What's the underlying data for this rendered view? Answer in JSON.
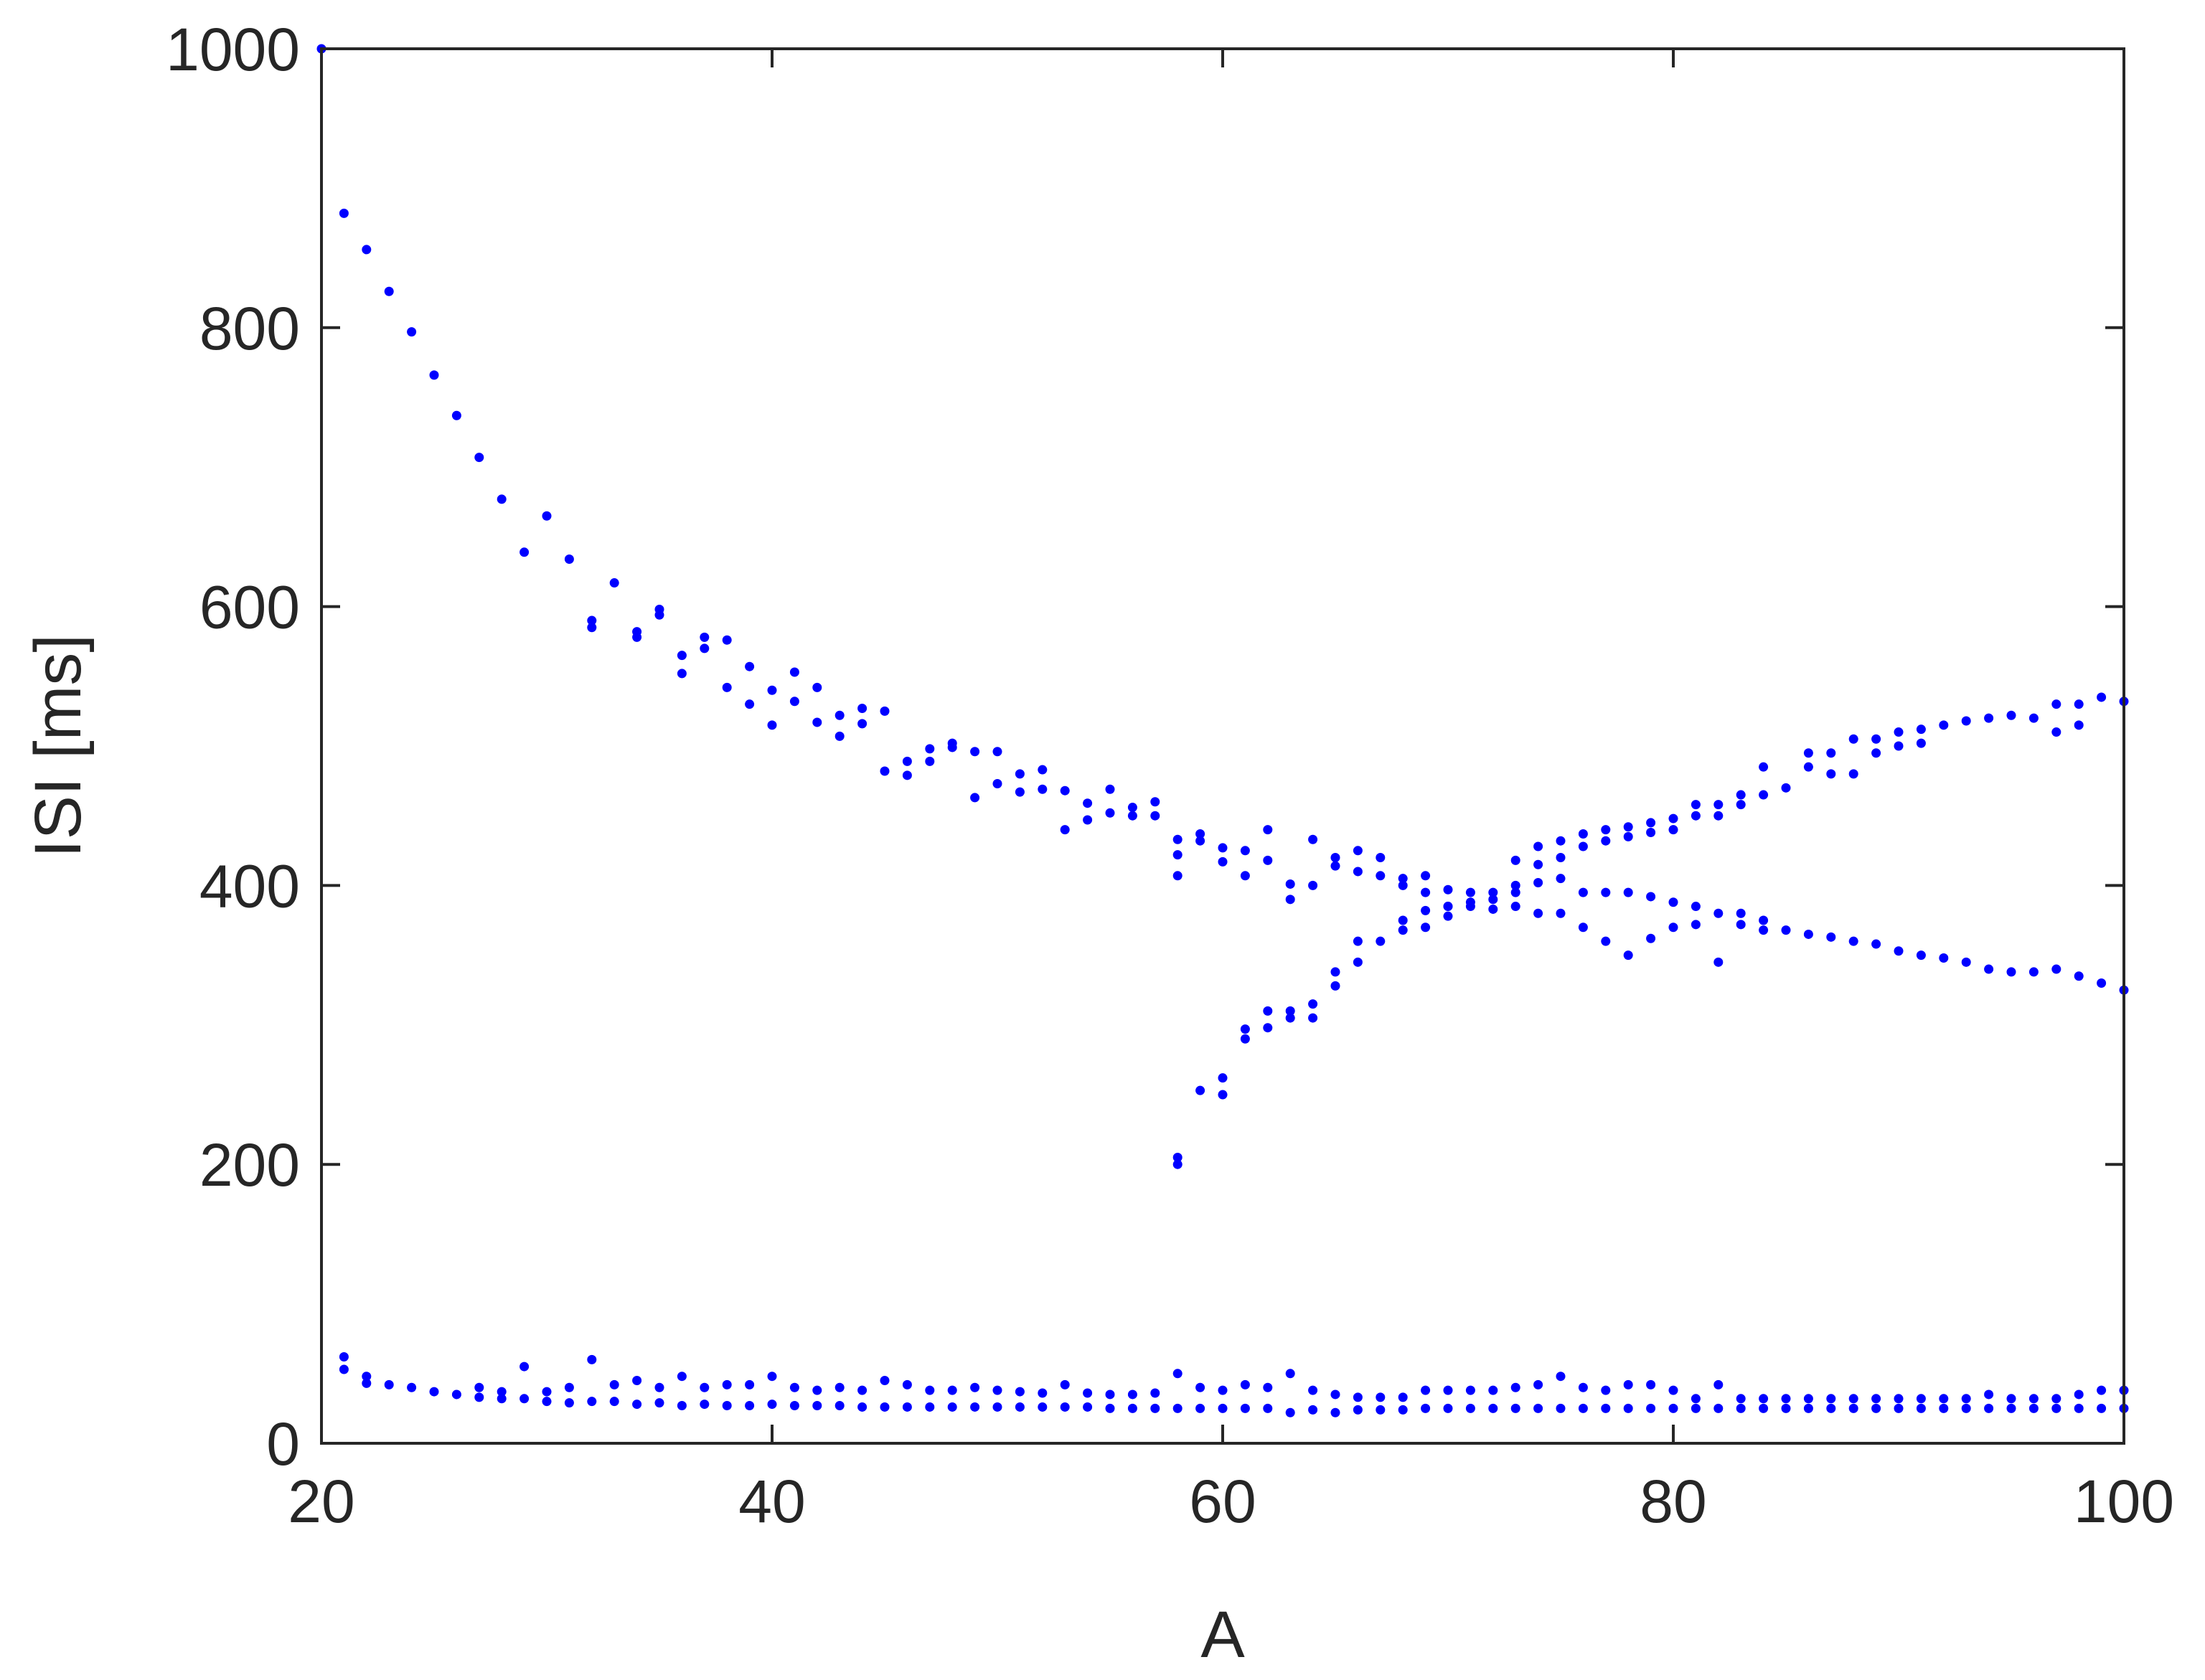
{
  "chart_data": {
    "type": "scatter",
    "title": "",
    "xlabel": "A",
    "ylabel": "ISI [ms]",
    "xlim": [
      20,
      100
    ],
    "ylim": [
      0,
      1000
    ],
    "xticks": [
      20,
      40,
      60,
      80,
      100
    ],
    "yticks": [
      0,
      200,
      400,
      600,
      800,
      1000
    ],
    "grid": false,
    "legend": "none",
    "marker_color": "#0000ff",
    "axis_color": "#262626",
    "series": [
      {
        "x": [
          20,
          21,
          22,
          23,
          24,
          25,
          26,
          27,
          28,
          29,
          30,
          31,
          32,
          32,
          33,
          34,
          34,
          35,
          35,
          36,
          36,
          37,
          37,
          38,
          38,
          39,
          39,
          40,
          40,
          41,
          41,
          42,
          42,
          43,
          43,
          44,
          44,
          45,
          45,
          46,
          46,
          47,
          47,
          48,
          48,
          49,
          49,
          50,
          50,
          51,
          51,
          52,
          52,
          53,
          53,
          54,
          54,
          55,
          55,
          56,
          56,
          57,
          57,
          58,
          58,
          58,
          59,
          59,
          60,
          60,
          61,
          61,
          62,
          62,
          63,
          63,
          64,
          64,
          65,
          65,
          66,
          66,
          67,
          67,
          68,
          68,
          69,
          69,
          70,
          70,
          71,
          71,
          72,
          72,
          73,
          73,
          74,
          74,
          75,
          75,
          76,
          76,
          77,
          77,
          78,
          78,
          79,
          79,
          80,
          80,
          81,
          81,
          82,
          82,
          83,
          83,
          84,
          84,
          85,
          86,
          87,
          88,
          89,
          90,
          91,
          92,
          93,
          94,
          95,
          96,
          97,
          98,
          99,
          100
        ],
        "y": [
          1000,
          882,
          856,
          826,
          797,
          766,
          737,
          707,
          677,
          639,
          665,
          634,
          590,
          585,
          617,
          582,
          578,
          598,
          594,
          565,
          552,
          578,
          570,
          576,
          542,
          557,
          530,
          540,
          515,
          553,
          532,
          542,
          517,
          522,
          507,
          527,
          516,
          525,
          482,
          489,
          479,
          498,
          489,
          502,
          499,
          496,
          463,
          496,
          473,
          480,
          467,
          483,
          469,
          468,
          440,
          459,
          447,
          469,
          452,
          456,
          450,
          460,
          450,
          433,
          422,
          407,
          437,
          432,
          427,
          417,
          425,
          407,
          440,
          418,
          401,
          390,
          433,
          400,
          420,
          414,
          425,
          410,
          420,
          407,
          405,
          400,
          407,
          395,
          397,
          385,
          395,
          385,
          395,
          383,
          395,
          385,
          402,
          380,
          405,
          380,
          395,
          370,
          395,
          360,
          395,
          350,
          392,
          362,
          388,
          370,
          385,
          372,
          380,
          345,
          380,
          372,
          375,
          368,
          368,
          365,
          363,
          360,
          358,
          353,
          350,
          348,
          345,
          340,
          338,
          338,
          340,
          335,
          330,
          325
        ]
      },
      {
        "x": [
          58,
          58,
          59,
          60,
          60,
          61,
          61,
          62,
          62,
          63,
          63,
          64,
          64,
          65,
          65,
          66,
          66,
          67,
          68,
          68,
          69,
          69,
          70,
          70,
          71,
          72,
          73,
          73,
          74,
          74,
          75,
          75,
          76,
          76,
          77,
          77,
          78,
          78,
          79,
          79,
          80,
          80,
          81,
          81,
          82,
          82,
          83,
          83,
          84,
          84,
          85,
          86,
          86,
          87,
          87,
          88,
          88,
          89,
          89,
          90,
          90,
          91,
          91,
          92,
          93,
          94,
          95,
          96,
          97,
          97,
          98,
          98,
          99,
          100
        ],
        "y": [
          205,
          200,
          253,
          262,
          250,
          297,
          290,
          310,
          298,
          310,
          305,
          315,
          305,
          338,
          328,
          360,
          345,
          360,
          375,
          368,
          382,
          370,
          385,
          378,
          388,
          390,
          418,
          400,
          428,
          415,
          432,
          420,
          437,
          428,
          440,
          432,
          442,
          435,
          445,
          438,
          448,
          440,
          458,
          450,
          458,
          450,
          465,
          458,
          485,
          465,
          470,
          495,
          485,
          495,
          480,
          505,
          480,
          505,
          495,
          510,
          500,
          512,
          502,
          515,
          518,
          520,
          522,
          520,
          530,
          510,
          530,
          515,
          535,
          532
        ]
      },
      {
        "x": [
          21,
          21,
          22,
          22,
          23,
          24,
          25,
          26,
          27,
          27,
          28,
          28,
          29,
          29,
          30,
          30,
          31,
          31,
          32,
          32,
          33,
          33,
          34,
          34,
          35,
          35,
          36,
          36,
          37,
          37,
          38,
          38,
          39,
          39,
          40,
          40,
          41,
          41,
          42,
          42,
          43,
          43,
          44,
          44,
          45,
          45,
          46,
          46,
          47,
          47,
          48,
          48,
          49,
          49,
          50,
          50,
          51,
          51,
          52,
          52,
          53,
          53,
          54,
          54,
          55,
          55,
          56,
          56,
          57,
          57,
          58,
          58,
          59,
          59,
          60,
          60,
          61,
          61,
          62,
          62,
          63,
          63,
          64,
          64,
          65,
          65,
          66,
          66,
          67,
          67,
          68,
          68,
          69,
          69,
          70,
          70,
          71,
          71,
          72,
          72,
          73,
          73,
          74,
          74,
          75,
          75,
          76,
          76,
          77,
          77,
          78,
          78,
          79,
          79,
          80,
          80,
          81,
          81,
          82,
          82,
          83,
          83,
          84,
          84,
          85,
          85,
          86,
          86,
          87,
          87,
          88,
          88,
          89,
          89,
          90,
          90,
          91,
          91,
          92,
          92,
          93,
          93,
          94,
          94,
          95,
          95,
          96,
          96,
          97,
          97,
          98,
          98,
          99,
          99,
          100,
          100
        ],
        "y": [
          62,
          53,
          48,
          43,
          42,
          40,
          37,
          35,
          40,
          33,
          37,
          32,
          55,
          32,
          37,
          30,
          40,
          29,
          60,
          30,
          42,
          30,
          45,
          28,
          40,
          29,
          48,
          27,
          40,
          28,
          42,
          27,
          42,
          27,
          48,
          28,
          40,
          27,
          38,
          27,
          40,
          27,
          38,
          26,
          45,
          26,
          42,
          26,
          38,
          26,
          38,
          26,
          40,
          26,
          38,
          26,
          37,
          26,
          36,
          26,
          42,
          26,
          36,
          26,
          35,
          25,
          35,
          25,
          36,
          25,
          50,
          25,
          40,
          25,
          38,
          25,
          42,
          25,
          40,
          25,
          50,
          22,
          38,
          24,
          35,
          22,
          33,
          24,
          33,
          24,
          33,
          24,
          38,
          25,
          38,
          25,
          38,
          25,
          38,
          25,
          40,
          25,
          42,
          25,
          48,
          25,
          40,
          25,
          38,
          25,
          42,
          25,
          42,
          25,
          38,
          25,
          32,
          25,
          42,
          25,
          32,
          25,
          32,
          25,
          32,
          25,
          32,
          25,
          32,
          25,
          32,
          25,
          32,
          25,
          32,
          25,
          32,
          25,
          32,
          25,
          32,
          25,
          35,
          25,
          32,
          25,
          32,
          25,
          32,
          25,
          35,
          25,
          38,
          25,
          38,
          25
        ]
      }
    ]
  }
}
